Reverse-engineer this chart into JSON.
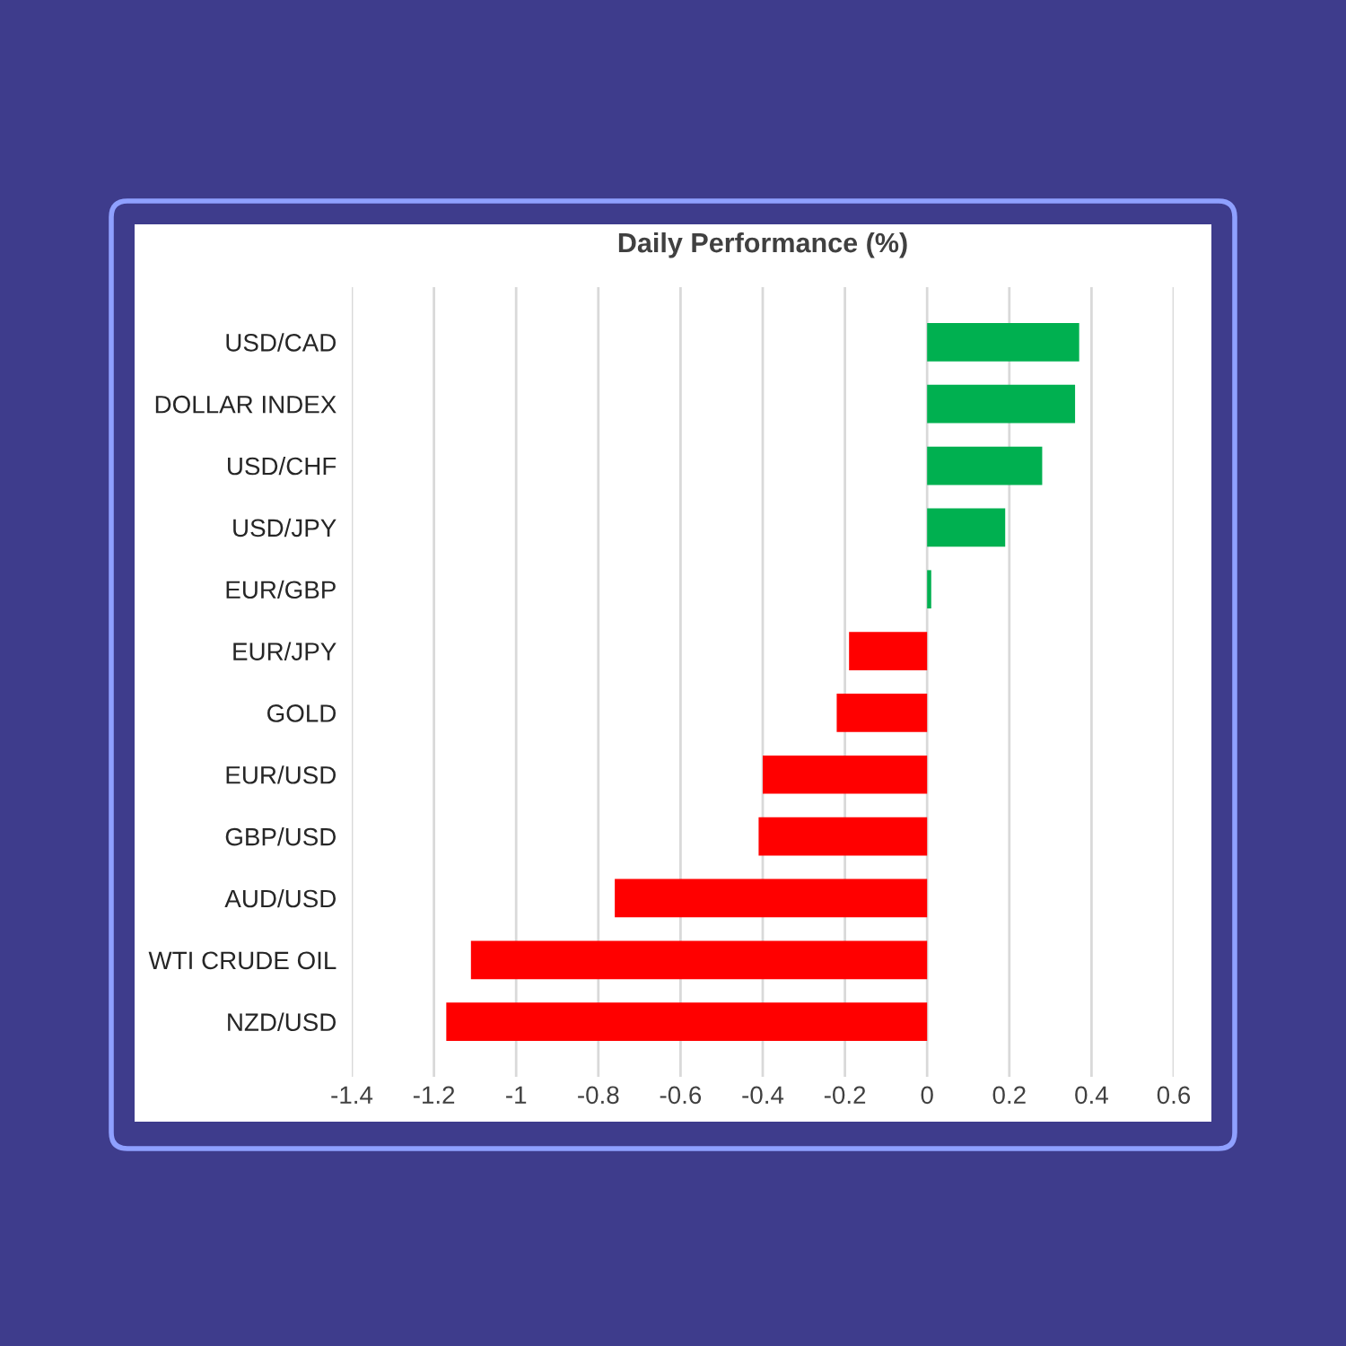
{
  "chart_data": {
    "type": "bar",
    "orientation": "horizontal",
    "title": "Daily Performance (%)",
    "categories": [
      "USD/CAD",
      "DOLLAR INDEX",
      "USD/CHF",
      "USD/JPY",
      "EUR/GBP",
      "EUR/JPY",
      "GOLD",
      "EUR/USD",
      "GBP/USD",
      "AUD/USD",
      "WTI CRUDE OIL",
      "NZD/USD"
    ],
    "values": [
      0.37,
      0.36,
      0.28,
      0.19,
      0.01,
      -0.19,
      -0.22,
      -0.4,
      -0.41,
      -0.76,
      -1.11,
      -1.17
    ],
    "colors": [
      "#00b050",
      "#00b050",
      "#00b050",
      "#00b050",
      "#00b050",
      "#ff0000",
      "#ff0000",
      "#ff0000",
      "#ff0000",
      "#ff0000",
      "#ff0000",
      "#ff0000"
    ],
    "xlim": [
      -1.4,
      0.6
    ],
    "xticks": [
      -1.4,
      -1.2,
      -1,
      -0.8,
      -0.6,
      -0.4,
      -0.2,
      0,
      0.2,
      0.4,
      0.6
    ],
    "grid": "x"
  }
}
